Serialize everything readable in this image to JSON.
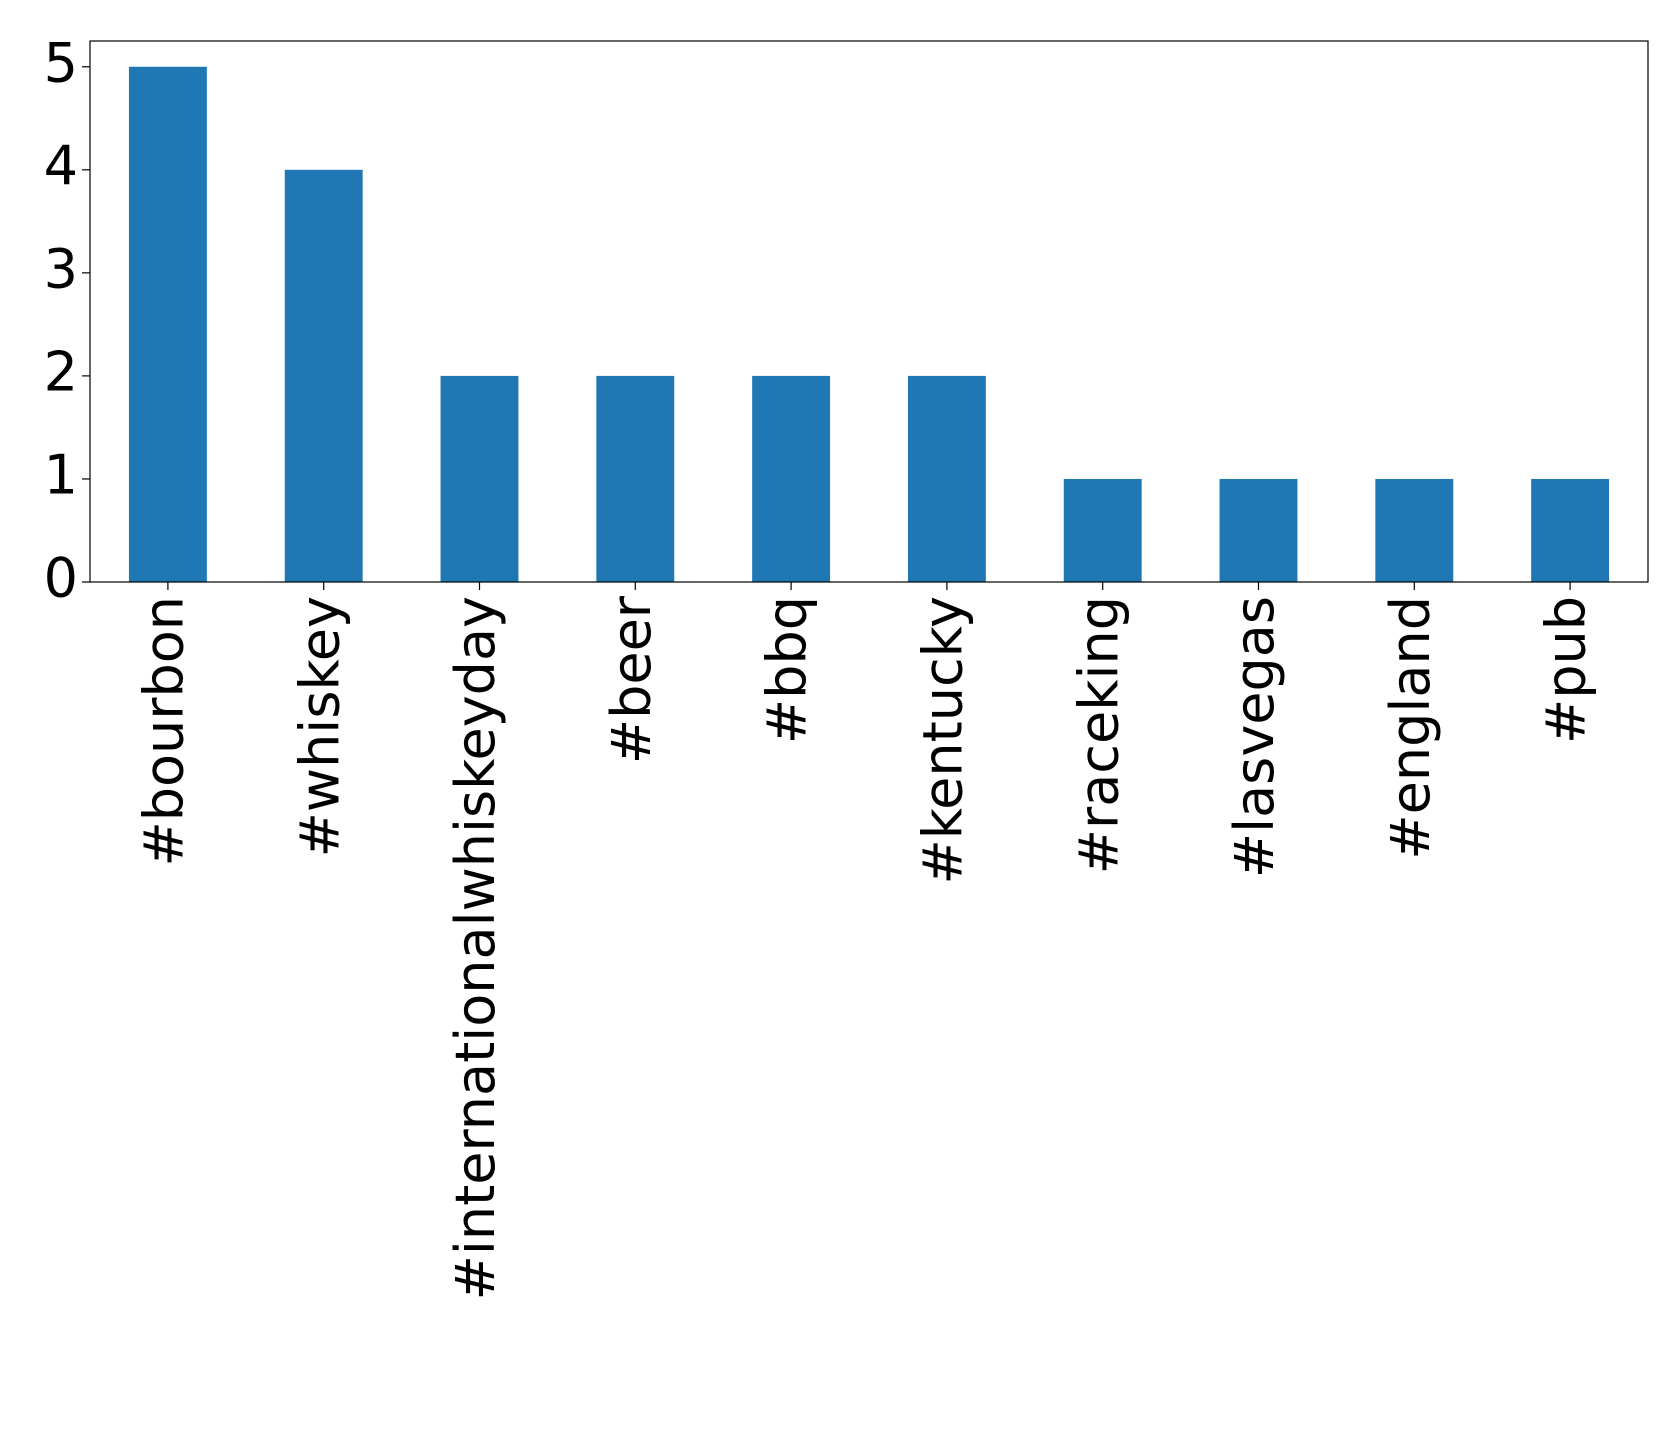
{
  "chart_data": {
    "type": "bar",
    "categories": [
      "#bourbon",
      "#whiskey",
      "#internationalwhiskeyday",
      "#beer",
      "#bbq",
      "#kentucky",
      "#raceking",
      "#lasvegas",
      "#england",
      "#pub"
    ],
    "values": [
      5,
      4,
      2,
      2,
      2,
      2,
      1,
      1,
      1,
      1
    ],
    "color": "#1f77b4",
    "ylim": [
      0,
      5.25
    ],
    "yticks": [
      0,
      1,
      2,
      3,
      4,
      5
    ],
    "grid": false
  }
}
